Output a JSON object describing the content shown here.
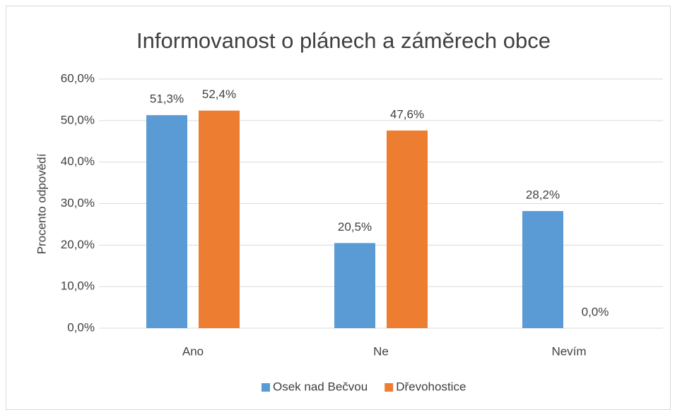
{
  "chart_data": {
    "type": "bar",
    "title": "Informovanost o plánech a záměrech obce",
    "y_label": "Procento odpovědí",
    "categories": [
      "Ano",
      "Ne",
      "Nevím"
    ],
    "series": [
      {
        "name": "Osek nad Bečvou",
        "color": "#5b9bd5",
        "values": [
          51.3,
          20.5,
          28.2
        ],
        "value_labels": [
          "51,3%",
          "20,5%",
          "28,2%"
        ]
      },
      {
        "name": "Dřevohostice",
        "color": "#ed7d31",
        "values": [
          52.4,
          47.6,
          0
        ],
        "value_labels": [
          "52,4%",
          "47,6%",
          "0,0%"
        ]
      }
    ],
    "ylim": [
      0,
      60
    ],
    "yticks": [
      {
        "value": 0,
        "label": "0,0%"
      },
      {
        "value": 10,
        "label": "10,0%"
      },
      {
        "value": 20,
        "label": "20,0%"
      },
      {
        "value": 30,
        "label": "30,0%"
      },
      {
        "value": 40,
        "label": "40,0%"
      },
      {
        "value": 50,
        "label": "50,0%"
      },
      {
        "value": 60,
        "label": "60,0%"
      }
    ],
    "grid": true,
    "legend": "bottom"
  }
}
